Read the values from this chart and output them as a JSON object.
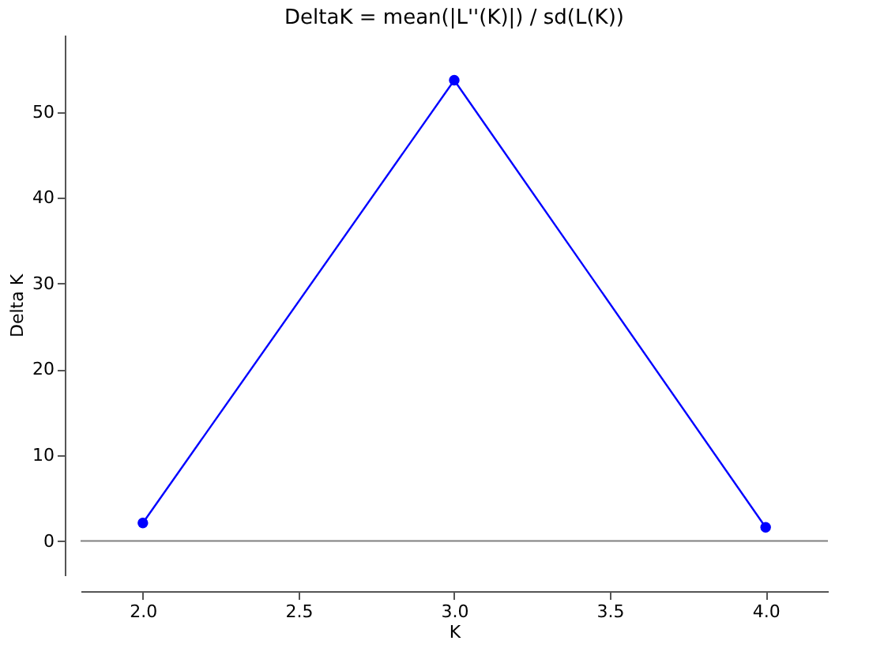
{
  "chart_data": {
    "type": "line",
    "title": "DeltaK = mean(|L''(K)|) / sd(L(K))",
    "xlabel": "K",
    "ylabel": "Delta K",
    "x": [
      2.0,
      3.0,
      4.0
    ],
    "series": [
      {
        "color": "#0000ff",
        "values": [
          2.1,
          53.7,
          1.6
        ]
      }
    ],
    "xlim": [
      1.8,
      4.2
    ],
    "xticks": [
      {
        "value": 2.0,
        "label": "2.0"
      },
      {
        "value": 2.5,
        "label": "2.5"
      },
      {
        "value": 3.0,
        "label": "3.0"
      },
      {
        "value": 3.5,
        "label": "3.5"
      },
      {
        "value": 4.0,
        "label": "4.0"
      }
    ],
    "ylim": [
      -4,
      59
    ],
    "yticks": [
      0,
      10,
      20,
      30,
      40,
      50
    ],
    "ref_lines": [
      {
        "axis": "y",
        "value": 0,
        "color": "#808080"
      }
    ],
    "marker": "circle",
    "line_style": "solid",
    "grid": false
  }
}
